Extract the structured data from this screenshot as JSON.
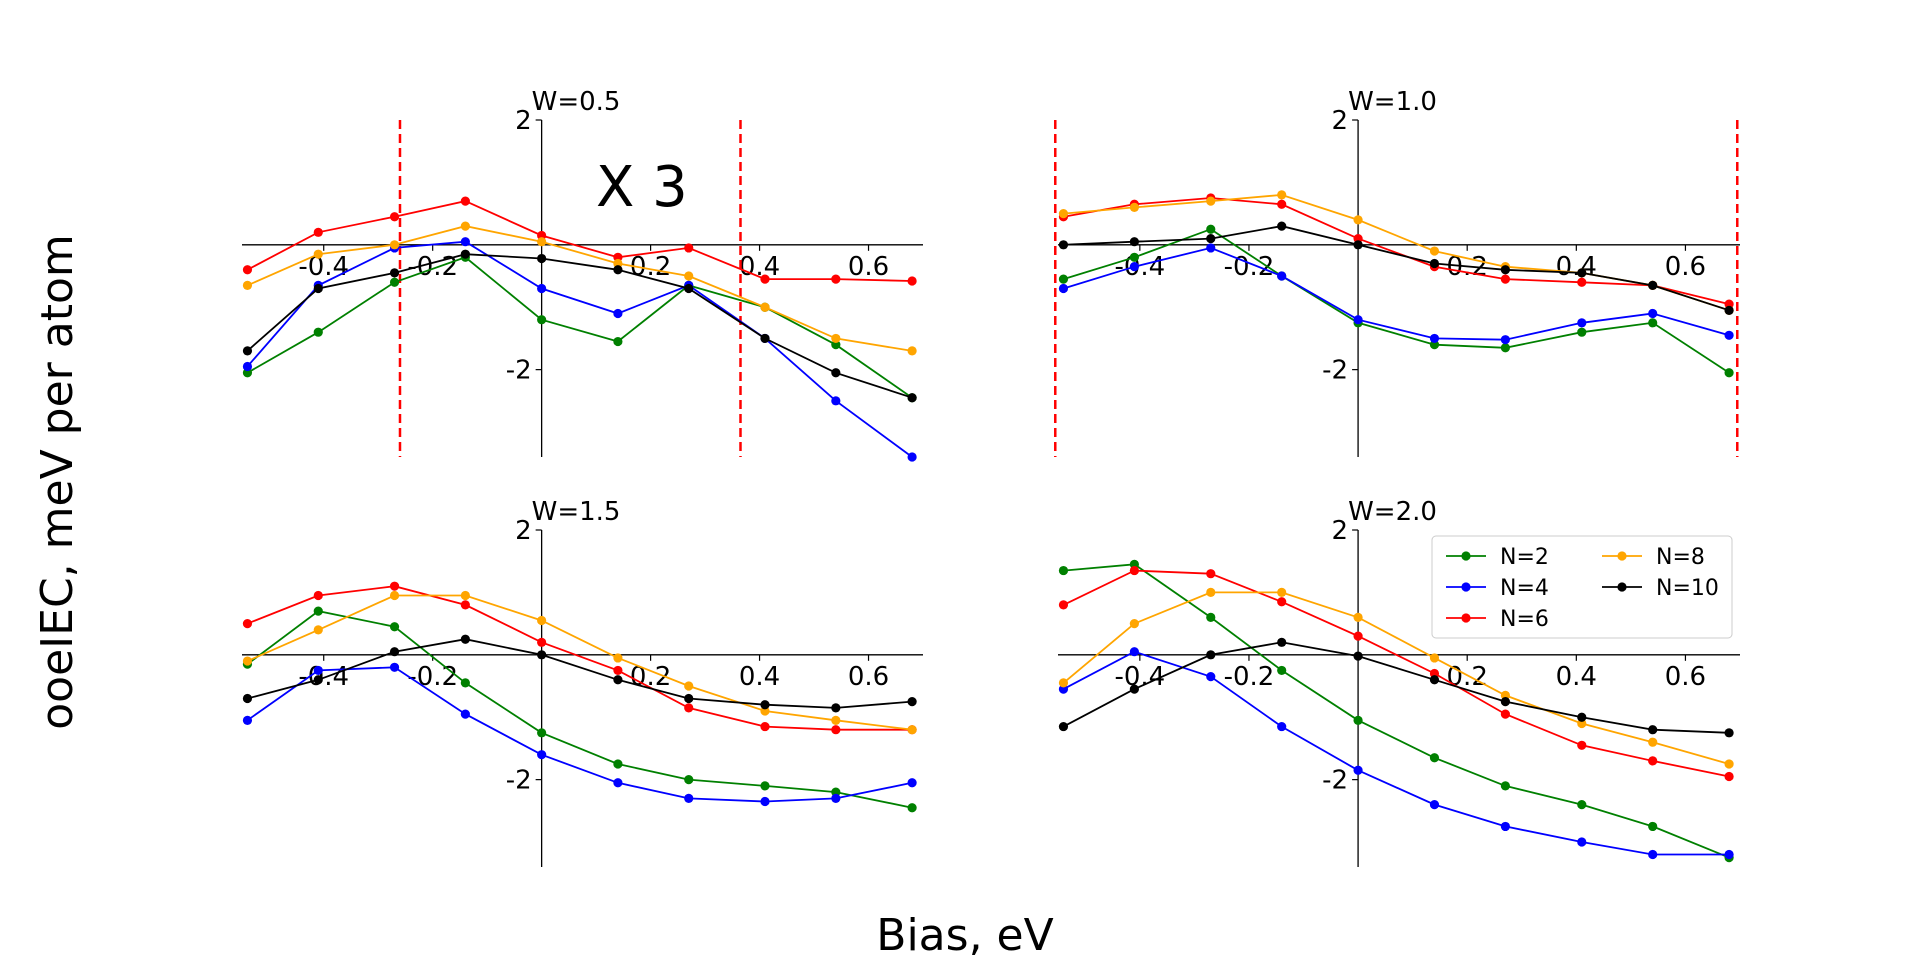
{
  "figure": {
    "xlabel": "Bias, eV",
    "ylabel": "ooeIEC, meV per atom",
    "annotation": "X 3"
  },
  "colors": {
    "N=2": "#008000",
    "N=4": "#0000ff",
    "N=6": "#ff0000",
    "N=8": "#ffa500",
    "N=10": "#000000",
    "vline": "#ff0000"
  },
  "legend": {
    "placement": "upper-right of W=2.0 panel",
    "entries": [
      "N=2",
      "N=4",
      "N=6",
      "N=8",
      "N=10"
    ]
  },
  "chart_data": [
    {
      "type": "line",
      "title": "W=0.5",
      "xlim": [
        -0.55,
        0.7
      ],
      "ylim": [
        -3.4,
        2
      ],
      "xticks": [
        -0.4,
        -0.2,
        0.2,
        0.4,
        0.6
      ],
      "xtick_labels": [
        "-0.4",
        "-0.2",
        "0.2",
        "0.4",
        "0.6"
      ],
      "yticks": [
        2,
        -2
      ],
      "ytick_labels": [
        "2",
        "-2"
      ],
      "vlines": [
        -0.26,
        0.365
      ],
      "x": [
        -0.54,
        -0.41,
        -0.27,
        -0.14,
        0.0,
        0.14,
        0.27,
        0.41,
        0.54,
        0.68
      ],
      "series": [
        {
          "name": "N=2",
          "values": [
            -2.05,
            -1.4,
            -0.6,
            -0.2,
            -1.2,
            -1.55,
            -0.65,
            -1.0,
            -1.6,
            -2.45
          ]
        },
        {
          "name": "N=4",
          "values": [
            -1.95,
            -0.65,
            -0.05,
            0.05,
            -0.7,
            -1.1,
            -0.65,
            -1.5,
            -2.5,
            -3.4
          ]
        },
        {
          "name": "N=6",
          "values": [
            -0.4,
            0.2,
            0.45,
            0.7,
            0.15,
            -0.2,
            -0.05,
            -0.55,
            -0.55,
            -0.58
          ]
        },
        {
          "name": "N=8",
          "values": [
            -0.65,
            -0.15,
            0.0,
            0.3,
            0.05,
            -0.3,
            -0.5,
            -1.0,
            -1.5,
            -1.7
          ]
        },
        {
          "name": "N=10",
          "values": [
            -1.7,
            -0.7,
            -0.45,
            -0.15,
            -0.22,
            -0.4,
            -0.7,
            -1.5,
            -2.05,
            -2.45
          ]
        }
      ]
    },
    {
      "type": "line",
      "title": "W=1.0",
      "xlim": [
        -0.55,
        0.7
      ],
      "ylim": [
        -3.4,
        2
      ],
      "xticks": [
        -0.4,
        -0.2,
        0.2,
        0.4,
        0.6
      ],
      "xtick_labels": [
        "-0.4",
        "-0.2",
        "0.2",
        "0.4",
        "0.6"
      ],
      "yticks": [
        2,
        -2
      ],
      "ytick_labels": [
        "2",
        "-2"
      ],
      "vlines": [
        -0.555,
        0.695
      ],
      "x": [
        -0.54,
        -0.41,
        -0.27,
        -0.14,
        0.0,
        0.14,
        0.27,
        0.41,
        0.54,
        0.68
      ],
      "series": [
        {
          "name": "N=2",
          "values": [
            -0.55,
            -0.2,
            0.25,
            -0.5,
            -1.25,
            -1.6,
            -1.65,
            -1.4,
            -1.25,
            -2.05
          ]
        },
        {
          "name": "N=4",
          "values": [
            -0.7,
            -0.35,
            -0.05,
            -0.5,
            -1.2,
            -1.5,
            -1.52,
            -1.25,
            -1.1,
            -1.45
          ]
        },
        {
          "name": "N=6",
          "values": [
            0.45,
            0.65,
            0.75,
            0.65,
            0.1,
            -0.35,
            -0.55,
            -0.6,
            -0.65,
            -0.95
          ]
        },
        {
          "name": "N=8",
          "values": [
            0.5,
            0.6,
            0.7,
            0.8,
            0.4,
            -0.1,
            -0.35,
            -0.45,
            -0.65,
            -1.05
          ]
        },
        {
          "name": "N=10",
          "values": [
            0.0,
            0.05,
            0.1,
            0.3,
            0.0,
            -0.3,
            -0.4,
            -0.45,
            -0.65,
            -1.05
          ]
        }
      ]
    },
    {
      "type": "line",
      "title": "W=1.5",
      "xlim": [
        -0.55,
        0.7
      ],
      "ylim": [
        -3.4,
        2
      ],
      "xticks": [
        -0.4,
        -0.2,
        0.2,
        0.4,
        0.6
      ],
      "xtick_labels": [
        "-0.4",
        "-0.2",
        "0.2",
        "0.4",
        "0.6"
      ],
      "yticks": [
        2,
        -2
      ],
      "ytick_labels": [
        "2",
        "-2"
      ],
      "vlines": [],
      "x": [
        -0.54,
        -0.41,
        -0.27,
        -0.14,
        0.0,
        0.14,
        0.27,
        0.41,
        0.54,
        0.68
      ],
      "series": [
        {
          "name": "N=2",
          "values": [
            -0.15,
            0.7,
            0.45,
            -0.45,
            -1.25,
            -1.75,
            -2.0,
            -2.1,
            -2.2,
            -2.45
          ]
        },
        {
          "name": "N=4",
          "values": [
            -1.05,
            -0.25,
            -0.2,
            -0.95,
            -1.6,
            -2.05,
            -2.3,
            -2.35,
            -2.3,
            -2.05
          ]
        },
        {
          "name": "N=6",
          "values": [
            0.5,
            0.95,
            1.1,
            0.8,
            0.2,
            -0.25,
            -0.85,
            -1.15,
            -1.2,
            -1.2
          ]
        },
        {
          "name": "N=8",
          "values": [
            -0.1,
            0.4,
            0.95,
            0.95,
            0.55,
            -0.05,
            -0.5,
            -0.9,
            -1.05,
            -1.2
          ]
        },
        {
          "name": "N=10",
          "values": [
            -0.7,
            -0.4,
            0.05,
            0.25,
            0.0,
            -0.4,
            -0.7,
            -0.8,
            -0.85,
            -0.75
          ]
        }
      ]
    },
    {
      "type": "line",
      "title": "W=2.0",
      "xlim": [
        -0.55,
        0.7
      ],
      "ylim": [
        -3.4,
        2
      ],
      "xticks": [
        -0.4,
        -0.2,
        0.2,
        0.4,
        0.6
      ],
      "xtick_labels": [
        "-0.4",
        "-0.2",
        "0.2",
        "0.4",
        "0.6"
      ],
      "yticks": [
        2,
        -2
      ],
      "ytick_labels": [
        "2",
        "-2"
      ],
      "vlines": [],
      "x": [
        -0.54,
        -0.41,
        -0.27,
        -0.14,
        0.0,
        0.14,
        0.27,
        0.41,
        0.54,
        0.68
      ],
      "series": [
        {
          "name": "N=2",
          "values": [
            1.35,
            1.45,
            0.6,
            -0.25,
            -1.05,
            -1.65,
            -2.1,
            -2.4,
            -2.75,
            -3.25
          ]
        },
        {
          "name": "N=4",
          "values": [
            -0.55,
            0.05,
            -0.35,
            -1.15,
            -1.85,
            -2.4,
            -2.75,
            -3.0,
            -3.2,
            -3.2
          ]
        },
        {
          "name": "N=6",
          "values": [
            0.8,
            1.35,
            1.3,
            0.85,
            0.3,
            -0.3,
            -0.95,
            -1.45,
            -1.7,
            -1.95
          ]
        },
        {
          "name": "N=8",
          "values": [
            -0.45,
            0.5,
            1.0,
            1.0,
            0.6,
            -0.05,
            -0.65,
            -1.1,
            -1.4,
            -1.75
          ]
        },
        {
          "name": "N=10",
          "values": [
            -1.15,
            -0.55,
            0.0,
            0.2,
            -0.02,
            -0.4,
            -0.75,
            -1.0,
            -1.2,
            -1.25
          ]
        }
      ]
    }
  ]
}
